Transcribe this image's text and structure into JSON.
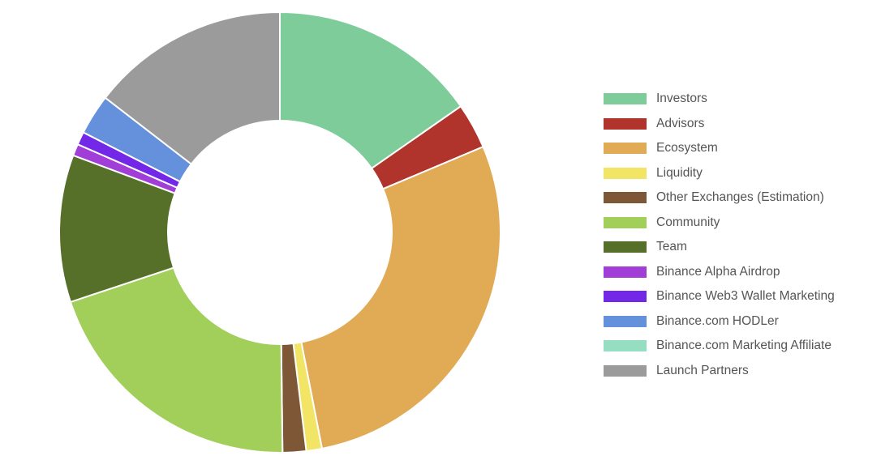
{
  "chart_data": {
    "type": "pie",
    "donut": true,
    "legend_position": "right",
    "slices": [
      {
        "label": "Investors",
        "value": 16,
        "color": "#7ECC9A"
      },
      {
        "label": "Advisors",
        "value": 3.5,
        "color": "#B0332C"
      },
      {
        "label": "Ecosystem",
        "value": 29.6,
        "color": "#E1AA54"
      },
      {
        "label": "Liquidity",
        "value": 1.2,
        "color": "#F2E566"
      },
      {
        "label": "Other Exchanges (Estimation)",
        "value": 1.8,
        "color": "#7E5836"
      },
      {
        "label": "Community",
        "value": 21,
        "color": "#A2CF5A"
      },
      {
        "label": "Team",
        "value": 11.3,
        "color": "#567029"
      },
      {
        "label": "Binance Alpha Airdrop",
        "value": 0.9,
        "color": "#A23ED8"
      },
      {
        "label": "Binance Web3 Wallet Marketing",
        "value": 1,
        "color": "#7328E8"
      },
      {
        "label": "Binance.com HODLer",
        "value": 3.1,
        "color": "#6590DC"
      },
      {
        "label": "Binance.com Marketing Affiliate",
        "value": 0,
        "color": "#96DEC1"
      },
      {
        "label": "Launch Partners",
        "value": 15.2,
        "color": "#9B9B9B"
      }
    ]
  }
}
